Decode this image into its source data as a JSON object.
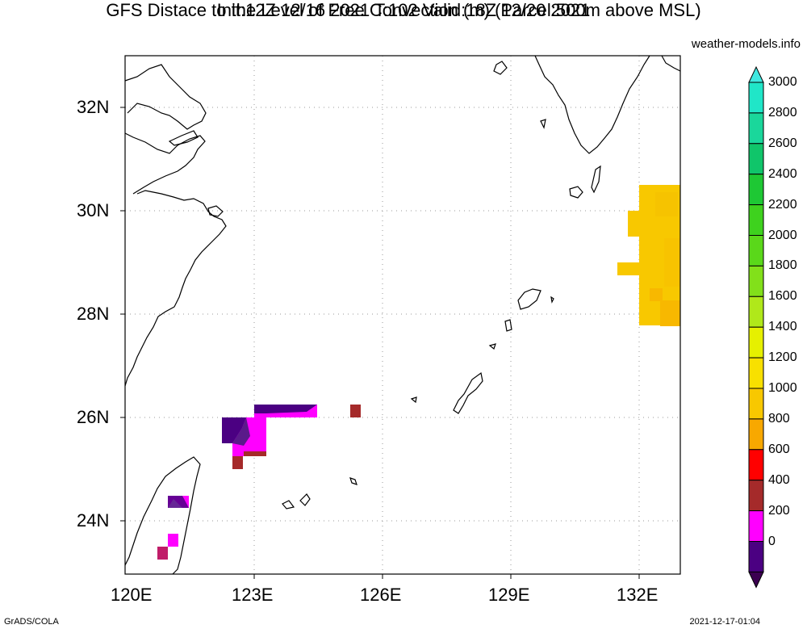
{
  "header": {
    "title_line1": "GFS Distace to the Level of Free Convection (m) (Parcel:500m above MSL)",
    "title_line2": "Init:12Z 12/16 2021 T:102 Valid:18Z 12/20 2021",
    "site": "weather-models.info"
  },
  "map": {
    "region": "East China Sea / Ryukyu Islands",
    "lon_range": [
      120,
      133
    ],
    "lat_range": [
      23,
      33
    ],
    "x_ticks": [
      "120E",
      "123E",
      "126E",
      "129E",
      "132E"
    ],
    "y_ticks": [
      "32N",
      "30N",
      "28N",
      "26N",
      "24N"
    ],
    "grid": "dotted"
  },
  "colorbar": {
    "labels": [
      "3000",
      "2800",
      "2600",
      "2400",
      "2200",
      "2000",
      "1800",
      "1600",
      "1400",
      "1200",
      "1000",
      "800",
      "600",
      "400",
      "200",
      "0"
    ],
    "colors": [
      "#20e6c8",
      "#1ad79b",
      "#10c56a",
      "#1ec834",
      "#3ed21e",
      "#5ad81a",
      "#82e01a",
      "#b0e81a",
      "#e6f000",
      "#f8e000",
      "#f8c800",
      "#f8a800",
      "#ff0000",
      "#a52a2a",
      "#ff00ff",
      "#4b0082"
    ],
    "top_arrow": "#40e8e0",
    "bottom_arrow": "#3b0050"
  },
  "footer": {
    "left": "GrADS/COLA",
    "right": "2021-12-17-01:04"
  }
}
